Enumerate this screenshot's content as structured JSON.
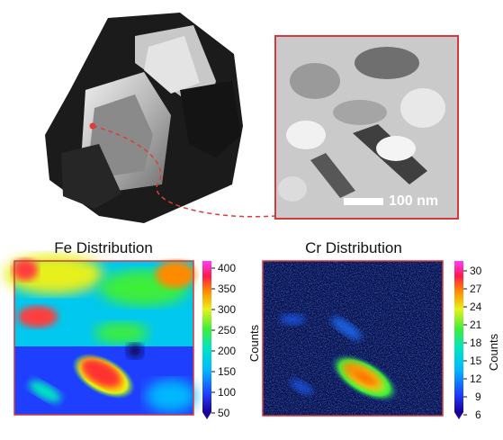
{
  "figure": {
    "scale_bar": {
      "label": "100 nm"
    },
    "fe_map": {
      "title": "Fe Distribution",
      "colorbar_label": "Counts",
      "ticks": [
        "400",
        "350",
        "300",
        "250",
        "200",
        "150",
        "100",
        "50"
      ]
    },
    "cr_map": {
      "title": "Cr Distribution",
      "colorbar_label": "Counts",
      "ticks": [
        "30",
        "27",
        "24",
        "21",
        "18",
        "15",
        "12",
        "9",
        "6"
      ]
    },
    "colors": {
      "frame_red": "#d43a3a",
      "connector_red": "#e03a3a"
    }
  }
}
